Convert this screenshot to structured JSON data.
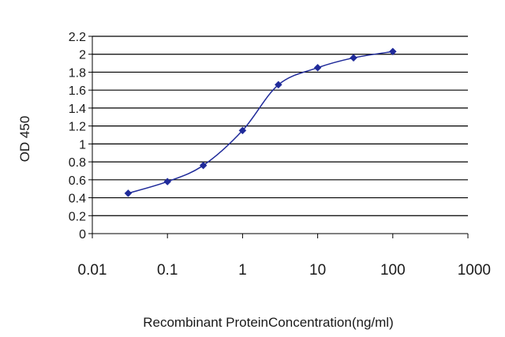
{
  "chart_data": {
    "type": "line",
    "xscale": "log",
    "xlim": [
      0.01,
      1000
    ],
    "ylim": [
      0,
      2.2
    ],
    "xticks": [
      "0.01",
      "0.1",
      "1",
      "10",
      "100",
      "1000"
    ],
    "yticks": [
      "0",
      "0.2",
      "0.4",
      "0.6",
      "0.8",
      "1",
      "1.2",
      "1.4",
      "1.6",
      "1.8",
      "2",
      "2.2"
    ],
    "xlabel": "Recombinant ProteinConcentration(ng/ml)",
    "ylabel": "OD 450",
    "grid": "horizontal",
    "legend": "none",
    "colors": {
      "series": "#1f2a9a",
      "grid": "#000000",
      "background": "#ffffff"
    },
    "series": [
      {
        "x": [
          0.03,
          0.1,
          0.3,
          1,
          3,
          10,
          30,
          100
        ],
        "y": [
          0.45,
          0.58,
          0.76,
          1.15,
          1.66,
          1.85,
          1.96,
          2.03
        ]
      }
    ]
  }
}
